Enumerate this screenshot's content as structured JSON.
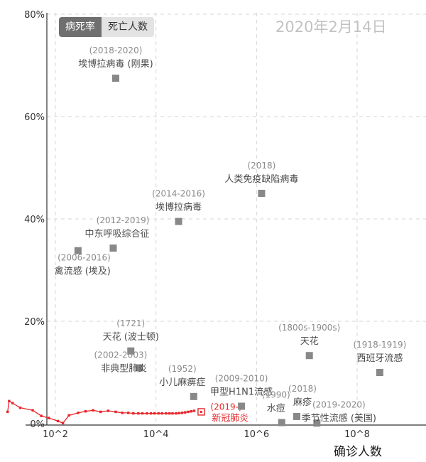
{
  "controls": {
    "tab_cfr": "病死率",
    "tab_deaths": "死亡人数"
  },
  "date_label": "2020年2月14日",
  "chart_data": {
    "type": "scatter",
    "title": "",
    "xlabel": "确诊人数",
    "ylabel": "",
    "x_scale": "log",
    "xlim_log10": [
      1.05,
      8.45
    ],
    "ylim": [
      -0.5,
      80
    ],
    "x_ticks": [
      {
        "exp": 2,
        "label": "10^2"
      },
      {
        "exp": 4,
        "label": "10^4"
      },
      {
        "exp": 6,
        "label": "10^6"
      },
      {
        "exp": 8,
        "label": "10^8"
      }
    ],
    "y_ticks": [
      {
        "value": 0,
        "label": "0%"
      },
      {
        "value": 20,
        "label": "20%"
      },
      {
        "value": 40,
        "label": "40%"
      },
      {
        "value": 60,
        "label": "60%"
      },
      {
        "value": 80,
        "label": "80%"
      }
    ],
    "grid": true,
    "point_color": "#888888",
    "highlight_color": "#e8262a",
    "points": [
      {
        "name": "埃博拉病毒 (刚果)",
        "period": "(2018-2020)",
        "log10_cases": 3.2,
        "cfr": 67.5
      },
      {
        "name": "人类免疫缺陷病毒",
        "period": "(2018)",
        "log10_cases": 6.1,
        "cfr": 45
      },
      {
        "name": "埃博拉病毒",
        "period": "(2014-2016)",
        "log10_cases": 4.45,
        "cfr": 39.5
      },
      {
        "name": "中东呼吸综合征",
        "period": "(2012-2019)",
        "log10_cases": 3.15,
        "cfr": 34.3
      },
      {
        "name": "禽流感 (埃及)",
        "period": "(2006-2016)",
        "log10_cases": 2.45,
        "cfr": 33.8
      },
      {
        "name": "天花 (波士顿)",
        "period": "(1721)",
        "log10_cases": 3.5,
        "cfr": 14.2
      },
      {
        "name": "非典型肺炎",
        "period": "(2002-2003)",
        "log10_cases": 3.67,
        "cfr": 10.9
      },
      {
        "name": "小儿麻痹症",
        "period": "(1952)",
        "log10_cases": 4.75,
        "cfr": 5.3
      },
      {
        "name": "甲型H1N1流感",
        "period": "(2009-2010)",
        "log10_cases": 5.7,
        "cfr": 3.4
      },
      {
        "name": "天花",
        "period": "(1800s-1900s)",
        "log10_cases": 7.05,
        "cfr": 13.3
      },
      {
        "name": "西班牙流感",
        "period": "(1918-1919)",
        "log10_cases": 8.45,
        "cfr": 10
      },
      {
        "name": "水痘",
        "period": "(1990)",
        "log10_cases": 6.5,
        "cfr": 0.2
      },
      {
        "name": "麻疹",
        "period": "(2018)",
        "log10_cases": 6.8,
        "cfr": 1.4
      },
      {
        "name": "季节性流感 (美国)",
        "period": "(2019-2020)",
        "log10_cases": 7.2,
        "cfr": 0.1
      }
    ],
    "highlight": {
      "name": "新冠肺炎",
      "period": "(2019-)",
      "log10_cases": 4.9,
      "cfr": 2.3,
      "trail": [
        {
          "log10_cases": 1.05,
          "cfr": 2.3
        },
        {
          "log10_cases": 1.08,
          "cfr": 4.4
        },
        {
          "log10_cases": 1.15,
          "cfr": 4.0
        },
        {
          "log10_cases": 1.3,
          "cfr": 3.1
        },
        {
          "log10_cases": 1.55,
          "cfr": 2.6
        },
        {
          "log10_cases": 1.72,
          "cfr": 1.5
        },
        {
          "log10_cases": 1.87,
          "cfr": 1.1
        },
        {
          "log10_cases": 2.05,
          "cfr": 0.5
        },
        {
          "log10_cases": 2.15,
          "cfr": 0.1
        },
        {
          "log10_cases": 2.27,
          "cfr": 1.6
        },
        {
          "log10_cases": 2.45,
          "cfr": 2.1
        },
        {
          "log10_cases": 2.6,
          "cfr": 2.4
        },
        {
          "log10_cases": 2.75,
          "cfr": 2.6
        },
        {
          "log10_cases": 2.9,
          "cfr": 2.3
        },
        {
          "log10_cases": 3.05,
          "cfr": 2.5
        },
        {
          "log10_cases": 3.2,
          "cfr": 2.3
        },
        {
          "log10_cases": 3.33,
          "cfr": 2.1
        },
        {
          "log10_cases": 3.45,
          "cfr": 2.1
        },
        {
          "log10_cases": 3.55,
          "cfr": 2.0
        },
        {
          "log10_cases": 3.65,
          "cfr": 2.0
        },
        {
          "log10_cases": 3.73,
          "cfr": 2.0
        },
        {
          "log10_cases": 3.82,
          "cfr": 2.0
        },
        {
          "log10_cases": 3.9,
          "cfr": 2.0
        },
        {
          "log10_cases": 3.97,
          "cfr": 2.0
        },
        {
          "log10_cases": 4.05,
          "cfr": 2.0
        },
        {
          "log10_cases": 4.12,
          "cfr": 2.0
        },
        {
          "log10_cases": 4.2,
          "cfr": 2.0
        },
        {
          "log10_cases": 4.27,
          "cfr": 2.0
        },
        {
          "log10_cases": 4.33,
          "cfr": 2.0
        },
        {
          "log10_cases": 4.4,
          "cfr": 2.0
        },
        {
          "log10_cases": 4.46,
          "cfr": 2.05
        },
        {
          "log10_cases": 4.52,
          "cfr": 2.1
        },
        {
          "log10_cases": 4.58,
          "cfr": 2.2
        },
        {
          "log10_cases": 4.64,
          "cfr": 2.3
        },
        {
          "log10_cases": 4.7,
          "cfr": 2.4
        },
        {
          "log10_cases": 4.76,
          "cfr": 2.5
        }
      ]
    }
  }
}
